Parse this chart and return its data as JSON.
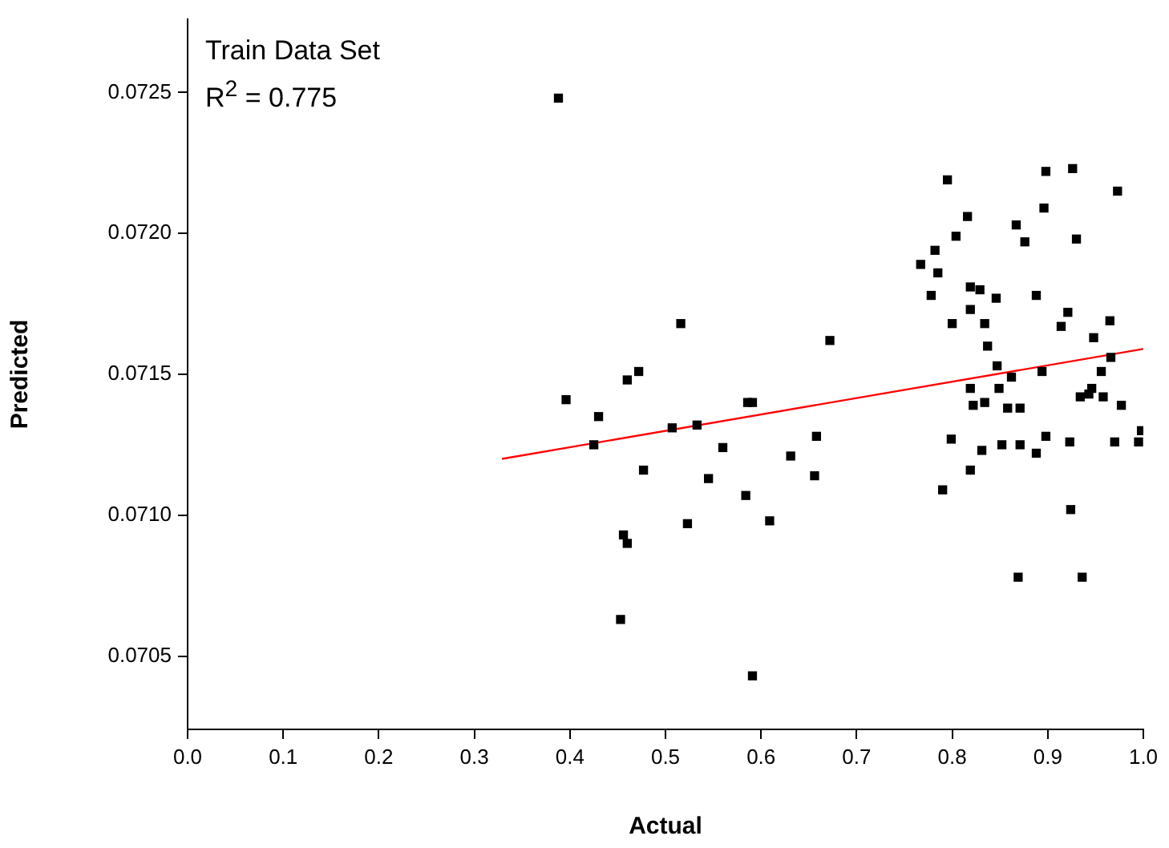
{
  "chart_data": {
    "type": "scatter",
    "xlabel": "Actual",
    "ylabel": "Predicted",
    "annotations": [
      "Train Data Set",
      "R$^{2}$ = 0.775"
    ],
    "xlim": [
      0,
      1
    ],
    "ylim": [
      0.07024,
      0.07276
    ],
    "xticks": [
      {
        "value": 0,
        "label": "0.0"
      },
      0.1,
      0.2,
      0.3,
      0.4,
      0.5,
      0.6,
      0.7,
      0.8,
      0.9,
      {
        "value": 1,
        "label": "1.0"
      }
    ],
    "yticks": [
      0.0705,
      {
        "value": 0.071,
        "label": "0.0710"
      },
      0.0715,
      {
        "value": 0.072,
        "label": "0.0720"
      },
      0.0725
    ],
    "grid": false,
    "legend": false,
    "series": [
      {
        "marker": "square",
        "color": "#000000",
        "x": [
          0.388,
          0.516,
          0.472,
          0.46,
          0.396,
          0.43,
          0.586,
          0.591,
          0.507,
          0.533,
          0.425,
          0.56,
          0.631,
          0.477,
          0.545,
          0.584,
          0.609,
          0.523,
          0.456,
          0.46,
          0.453,
          0.591,
          0.672,
          0.658,
          0.656,
          0.795,
          0.898,
          0.926,
          0.973,
          0.896,
          0.816,
          0.867,
          0.804,
          0.876,
          0.93,
          0.782,
          0.767,
          0.785,
          0.778,
          0.819,
          0.829,
          0.846,
          0.888,
          0.921,
          0.965,
          0.819,
          0.8,
          0.834,
          0.914,
          0.837,
          0.948,
          0.966,
          0.847,
          0.956,
          0.894,
          0.862,
          0.819,
          0.849,
          0.946,
          0.943,
          0.934,
          0.958,
          0.822,
          0.834,
          0.858,
          0.871,
          0.977,
          0.799,
          0.898,
          0.923,
          0.97,
          0.995,
          0.998,
          0.831,
          0.852,
          0.871,
          0.888,
          0.819,
          0.79,
          0.924,
          0.869,
          0.936
        ],
        "values": [
          0.07248,
          0.07168,
          0.07151,
          0.07148,
          0.07141,
          0.07135,
          0.0714,
          0.0714,
          0.07131,
          0.07132,
          0.07125,
          0.07124,
          0.07121,
          0.07116,
          0.07113,
          0.07107,
          0.07098,
          0.07097,
          0.07093,
          0.0709,
          0.07063,
          0.07043,
          0.07162,
          0.07128,
          0.07114,
          0.07219,
          0.07222,
          0.07223,
          0.07215,
          0.07209,
          0.07206,
          0.07203,
          0.07199,
          0.07197,
          0.07198,
          0.07194,
          0.07189,
          0.07186,
          0.07178,
          0.07181,
          0.0718,
          0.07177,
          0.07178,
          0.07172,
          0.07169,
          0.07173,
          0.07168,
          0.07168,
          0.07167,
          0.0716,
          0.07163,
          0.07156,
          0.07153,
          0.07151,
          0.07151,
          0.07149,
          0.07145,
          0.07145,
          0.07145,
          0.07143,
          0.07142,
          0.07142,
          0.07139,
          0.0714,
          0.07138,
          0.07138,
          0.07139,
          0.07127,
          0.07128,
          0.07126,
          0.07126,
          0.07126,
          0.0713,
          0.07123,
          0.07125,
          0.07125,
          0.07122,
          0.07116,
          0.07109,
          0.07102,
          0.07078,
          0.07078
        ]
      },
      {
        "type": "line",
        "marker": "none",
        "color": "#ff0000",
        "x": [
          0.329,
          1.0
        ],
        "values": [
          0.0712,
          0.07159
        ]
      }
    ]
  }
}
